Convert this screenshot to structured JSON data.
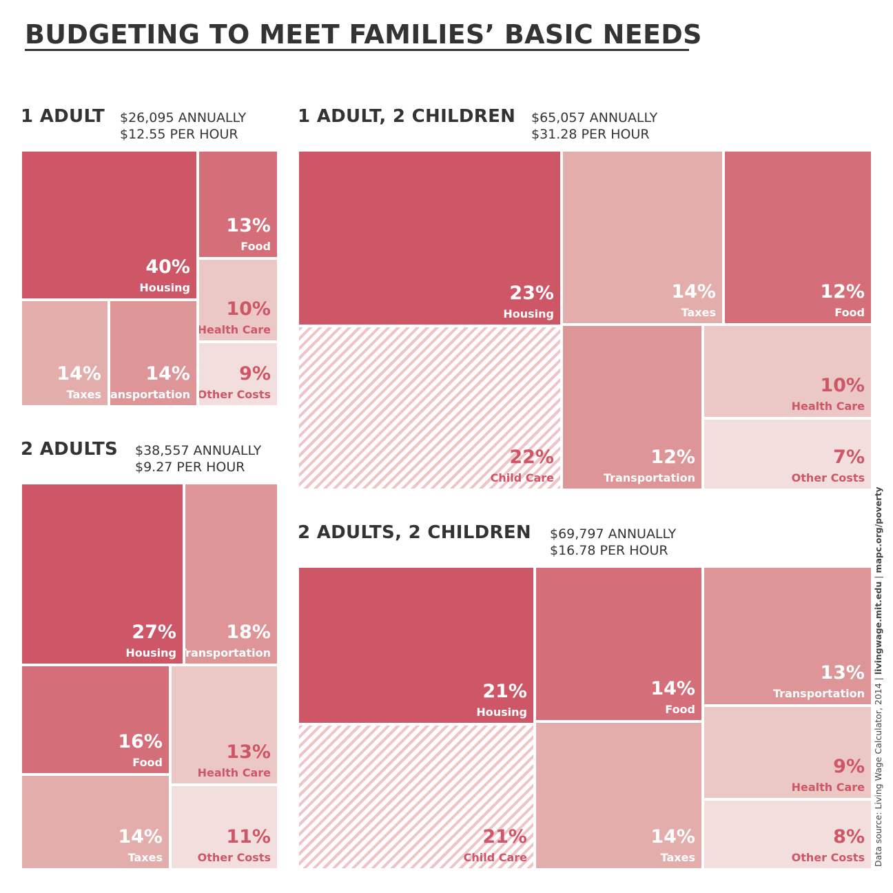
{
  "title": "BUDGETING TO MEET FAMILIES’ BASIC NEEDS",
  "source": {
    "prefix": "Data source: Living Wage Calculator, 2014 ",
    "sep": " | ",
    "link1": "livingwage.mit.edu",
    "link2": "mapc.org/poverty"
  },
  "colors": {
    "c1": "#cd5667",
    "c2": "#d46e79",
    "c3": "#dd9598",
    "c4": "#e3adac",
    "c5": "#ebc7c6",
    "c6": "#f2dedd",
    "text_dark": "#ffffff",
    "text_light": "#cd5667"
  },
  "chart_data": [
    {
      "type": "treemap",
      "title": "1 ADULT",
      "annual": "$26,095 ANNUALLY",
      "hourly": "$12.55 PER HOUR",
      "values": [
        {
          "category": "Housing",
          "value": 40,
          "label": "40%",
          "color": "c1"
        },
        {
          "category": "Food",
          "value": 13,
          "label": "13%",
          "color": "c2"
        },
        {
          "category": "Health Care",
          "value": 10,
          "label": "10%",
          "color": "c5"
        },
        {
          "category": "Taxes",
          "value": 14,
          "label": "14%",
          "color": "c4"
        },
        {
          "category": "Transportation",
          "value": 14,
          "label": "14%",
          "color": "c3"
        },
        {
          "category": "Other Costs",
          "value": 9,
          "label": "9%",
          "color": "c6"
        }
      ]
    },
    {
      "type": "treemap",
      "title": "2 ADULTS",
      "annual": "$38,557 ANNUALLY",
      "hourly": "$9.27 PER HOUR",
      "values": [
        {
          "category": "Housing",
          "value": 27,
          "label": "27%",
          "color": "c1"
        },
        {
          "category": "Transportation",
          "value": 18,
          "label": "18%",
          "color": "c3"
        },
        {
          "category": "Food",
          "value": 16,
          "label": "16%",
          "color": "c2"
        },
        {
          "category": "Health Care",
          "value": 13,
          "label": "13%",
          "color": "c5"
        },
        {
          "category": "Taxes",
          "value": 14,
          "label": "14%",
          "color": "c4"
        },
        {
          "category": "Other Costs",
          "value": 11,
          "label": "11%",
          "color": "c6"
        }
      ]
    },
    {
      "type": "treemap",
      "title": "1 ADULT, 2 CHILDREN",
      "annual": "$65,057 ANNUALLY",
      "hourly": "$31.28 PER HOUR",
      "values": [
        {
          "category": "Housing",
          "value": 23,
          "label": "23%",
          "color": "c1"
        },
        {
          "category": "Taxes",
          "value": 14,
          "label": "14%",
          "color": "c4"
        },
        {
          "category": "Food",
          "value": 12,
          "label": "12%",
          "color": "c2"
        },
        {
          "category": "Child Care",
          "value": 22,
          "label": "22%",
          "color": "hatch"
        },
        {
          "category": "Transportation",
          "value": 12,
          "label": "12%",
          "color": "c3"
        },
        {
          "category": "Health Care",
          "value": 10,
          "label": "10%",
          "color": "c5"
        },
        {
          "category": "Other Costs",
          "value": 7,
          "label": "7%",
          "color": "c6"
        }
      ]
    },
    {
      "type": "treemap",
      "title": "2 ADULTS, 2 CHILDREN",
      "annual": "$69,797 ANNUALLY",
      "hourly": "$16.78 PER HOUR",
      "values": [
        {
          "category": "Housing",
          "value": 21,
          "label": "21%",
          "color": "c1"
        },
        {
          "category": "Food",
          "value": 14,
          "label": "14%",
          "color": "c2"
        },
        {
          "category": "Transportation",
          "value": 13,
          "label": "13%",
          "color": "c3"
        },
        {
          "category": "Child Care",
          "value": 21,
          "label": "21%",
          "color": "hatch"
        },
        {
          "category": "Taxes",
          "value": 14,
          "label": "14%",
          "color": "c4"
        },
        {
          "category": "Health Care",
          "value": 9,
          "label": "9%",
          "color": "c5"
        },
        {
          "category": "Other Costs",
          "value": 8,
          "label": "8%",
          "color": "c6"
        }
      ]
    }
  ]
}
